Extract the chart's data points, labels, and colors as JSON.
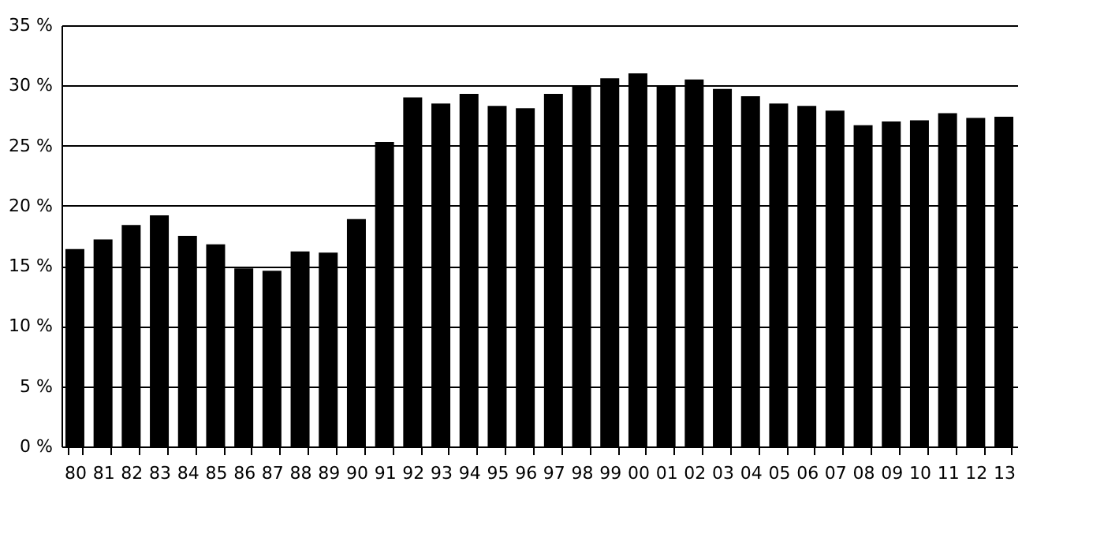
{
  "chart_data": {
    "type": "bar",
    "categories": [
      "80",
      "81",
      "82",
      "83",
      "84",
      "85",
      "86",
      "87",
      "88",
      "89",
      "90",
      "91",
      "92",
      "93",
      "94",
      "95",
      "96",
      "97",
      "98",
      "99",
      "00",
      "01",
      "02",
      "03",
      "04",
      "05",
      "06",
      "07",
      "08",
      "09",
      "10",
      "11",
      "12",
      "13"
    ],
    "values": [
      16.4,
      17.2,
      18.4,
      19.2,
      17.5,
      16.8,
      14.8,
      14.6,
      16.2,
      16.1,
      18.9,
      25.3,
      29.0,
      28.5,
      29.3,
      28.3,
      28.1,
      29.3,
      30.0,
      30.6,
      31.0,
      30.0,
      30.5,
      29.7,
      29.1,
      28.5,
      28.3,
      27.9,
      26.7,
      27.0,
      27.1,
      27.7,
      27.3,
      27.4
    ],
    "color": "#000000",
    "ylim": [
      0,
      35
    ],
    "yticks": [
      {
        "value": 0,
        "label": "0 %"
      },
      {
        "value": 5,
        "label": "5 %"
      },
      {
        "value": 10,
        "label": "10 %"
      },
      {
        "value": 15,
        "label": "15 %"
      },
      {
        "value": 20,
        "label": "20 %"
      },
      {
        "value": 25,
        "label": "25 %"
      },
      {
        "value": 30,
        "label": "30 %"
      },
      {
        "value": 35,
        "label": "35 %"
      }
    ],
    "grid": "y"
  }
}
